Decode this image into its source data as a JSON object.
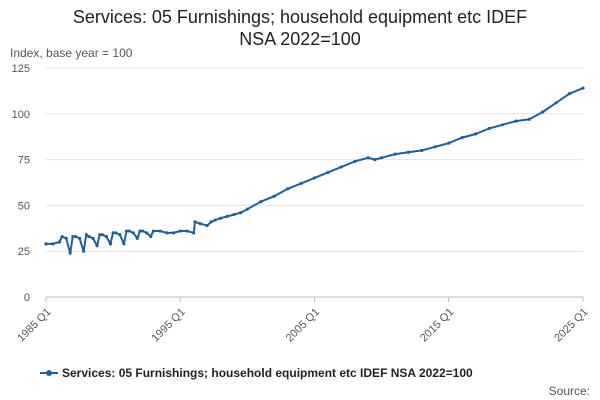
{
  "title_line1": "Services: 05 Furnishings; household equipment etc IDEF",
  "title_line2": "NSA 2022=100",
  "source_label": "Source:",
  "series_color": "#206095",
  "chart_data": {
    "type": "line",
    "title": "Services: 05 Furnishings; household equipment etc IDEF NSA 2022=100",
    "ylabel": "Index, base year = 100",
    "xlabel": "",
    "ylim": [
      0,
      125
    ],
    "yticks": [
      0,
      25,
      50,
      75,
      100,
      125
    ],
    "xlim": [
      1985,
      2025
    ],
    "xticks": [
      {
        "value": 1985,
        "label": "1985 Q1"
      },
      {
        "value": 1995,
        "label": "1995 Q1"
      },
      {
        "value": 2005,
        "label": "2005 Q1"
      },
      {
        "value": 2015,
        "label": "2015 Q1"
      },
      {
        "value": 2025,
        "label": "2025 Q1"
      }
    ],
    "grid": true,
    "legend_position": "bottom",
    "series": [
      {
        "name": "Services: 05 Furnishings; household equipment etc IDEF NSA 2022=100",
        "x": [
          1985.0,
          1985.5,
          1986.0,
          1986.2,
          1986.5,
          1986.8,
          1987.0,
          1987.2,
          1987.5,
          1987.8,
          1988.0,
          1988.2,
          1988.5,
          1988.8,
          1989.0,
          1989.2,
          1989.5,
          1989.8,
          1990.0,
          1990.2,
          1990.5,
          1990.8,
          1991.0,
          1991.2,
          1991.5,
          1991.8,
          1992.0,
          1992.2,
          1992.5,
          1992.8,
          1993.0,
          1993.5,
          1994.0,
          1994.5,
          1995.0,
          1995.5,
          1996.0,
          1996.1,
          1996.5,
          1997.0,
          1997.3,
          1997.6,
          1998.0,
          1998.5,
          1999.0,
          1999.5,
          2000.0,
          2001.0,
          2002.0,
          2003.0,
          2004.0,
          2005.0,
          2006.0,
          2007.0,
          2008.0,
          2009.0,
          2009.5,
          2010.0,
          2011.0,
          2012.0,
          2013.0,
          2014.0,
          2015.0,
          2016.0,
          2017.0,
          2018.0,
          2019.0,
          2020.0,
          2021.0,
          2022.0,
          2023.0,
          2024.0,
          2025.0
        ],
        "values": [
          29,
          29,
          30,
          33,
          32,
          24,
          33,
          33,
          32,
          25,
          34,
          33,
          32,
          28,
          34,
          34,
          33,
          29,
          35,
          35,
          34,
          29,
          36,
          36,
          35,
          32,
          36,
          36,
          35,
          33,
          36,
          36,
          35,
          35,
          36,
          36,
          35,
          41,
          40,
          39,
          41,
          42,
          43,
          44,
          45,
          46,
          48,
          52,
          55,
          59,
          62,
          65,
          68,
          71,
          74,
          76,
          75,
          76,
          78,
          79,
          80,
          82,
          84,
          87,
          89,
          92,
          94,
          96,
          97,
          101,
          106,
          111,
          114
        ]
      }
    ]
  }
}
